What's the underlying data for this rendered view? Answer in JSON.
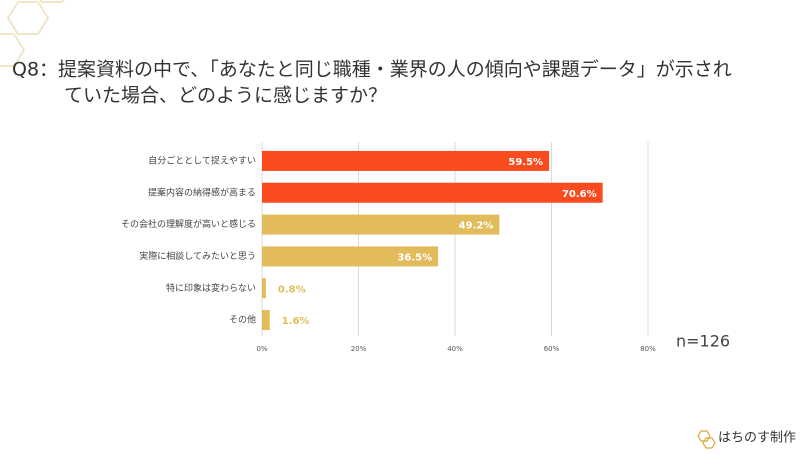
{
  "chart_data": {
    "type": "barh",
    "title": [
      "Q8：提案資料の中で、「あなたと同じ職種・業界の人の傾向や課題データ」が示され",
      "ていた場合、どのように感じますか？"
    ],
    "categories": [
      "自分ごととして捉えやすい",
      "提案内容の納得感が高まる",
      "その会社の理解度が高いと感じる",
      "実際に相談してみたいと思う",
      "特に印象は変わらない",
      "その他"
    ],
    "values": [
      59.5,
      70.6,
      49.2,
      36.5,
      0.8,
      1.6
    ],
    "value_labels": [
      "59.5%",
      "70.6%",
      "49.2%",
      "36.5%",
      "0.8%",
      "1.6%"
    ],
    "colors": [
      "#fa4b1e",
      "#fa4b1e",
      "#e2bb5b",
      "#e2bb5b",
      "#e2bb5b",
      "#e2bb5b"
    ],
    "xlim": [
      0,
      80
    ],
    "xticks": [
      {
        "value": 0,
        "label": "0%"
      },
      {
        "value": 20,
        "label": "20%"
      },
      {
        "value": 40,
        "label": "40%"
      },
      {
        "value": 60,
        "label": "60%"
      },
      {
        "value": 80,
        "label": "80%"
      }
    ],
    "grid": true,
    "annotation": "n=126",
    "footer": "はちのす制作"
  }
}
